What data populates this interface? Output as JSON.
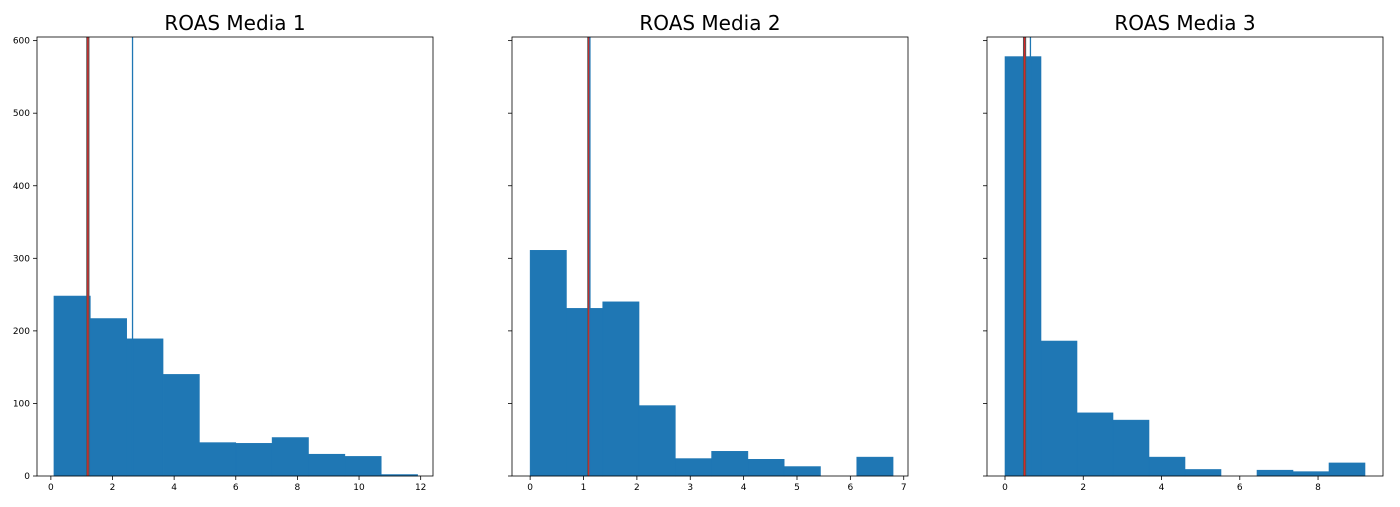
{
  "figure": {
    "bar_color": "#1f77b4",
    "bar_edge_color": "#1f77b4",
    "median_line_color": "#d62728",
    "median_line_outline": "#555555",
    "mean_line_color": "#1f77b4",
    "axes_color": "#000000"
  },
  "chart_data": [
    {
      "type": "bar",
      "subtype": "histogram",
      "title": "ROAS Media 1",
      "xlabel": "",
      "ylabel": "",
      "xlim": [
        -0.45,
        12.4
      ],
      "ylim": [
        0,
        605
      ],
      "xticks": [
        0,
        2,
        4,
        6,
        8,
        10,
        12
      ],
      "yticks": [
        0,
        100,
        200,
        300,
        400,
        500,
        600
      ],
      "show_ytick_labels": true,
      "bin_edges": [
        0.1,
        1.28,
        2.46,
        3.64,
        4.82,
        6.0,
        7.18,
        8.36,
        9.54,
        10.72,
        11.9
      ],
      "counts": [
        248,
        217,
        189,
        140,
        46,
        45,
        53,
        30,
        27,
        2
      ],
      "vlines": [
        {
          "kind": "median",
          "x": 1.2,
          "color": "#d62728"
        },
        {
          "kind": "mean",
          "x": 2.65,
          "color": "#1f77b4"
        }
      ],
      "grid": false
    },
    {
      "type": "bar",
      "subtype": "histogram",
      "title": "ROAS Media 2",
      "xlabel": "",
      "ylabel": "",
      "xlim": [
        -0.34,
        7.08
      ],
      "ylim": [
        0,
        605
      ],
      "xticks": [
        0,
        1,
        2,
        3,
        4,
        5,
        6,
        7
      ],
      "yticks": [
        0,
        100,
        200,
        300,
        400,
        500,
        600
      ],
      "show_ytick_labels": false,
      "bin_edges": [
        0.0,
        0.68,
        1.36,
        2.04,
        2.72,
        3.4,
        4.08,
        4.76,
        5.44,
        6.12,
        6.8
      ],
      "counts": [
        311,
        231,
        240,
        97,
        24,
        34,
        23,
        13,
        0,
        26
      ],
      "vlines": [
        {
          "kind": "median",
          "x": 1.1,
          "color": "#d62728"
        },
        {
          "kind": "mean",
          "x": 1.12,
          "color": "#1f77b4"
        }
      ],
      "grid": false
    },
    {
      "type": "bar",
      "subtype": "histogram",
      "title": "ROAS Media 3",
      "xlabel": "",
      "ylabel": "",
      "xlim": [
        -0.46,
        9.66
      ],
      "ylim": [
        0,
        605
      ],
      "xticks": [
        0,
        2,
        4,
        6,
        8
      ],
      "yticks": [
        0,
        100,
        200,
        300,
        400,
        500,
        600
      ],
      "show_ytick_labels": false,
      "bin_edges": [
        0.0,
        0.92,
        1.84,
        2.76,
        3.68,
        4.6,
        5.52,
        6.44,
        7.36,
        8.28,
        9.2
      ],
      "counts": [
        578,
        186,
        87,
        77,
        26,
        9,
        0,
        8,
        6,
        18
      ],
      "vlines": [
        {
          "kind": "median",
          "x": 0.5,
          "color": "#d62728"
        },
        {
          "kind": "mean",
          "x": 0.65,
          "color": "#1f77b4"
        }
      ],
      "grid": false
    }
  ]
}
